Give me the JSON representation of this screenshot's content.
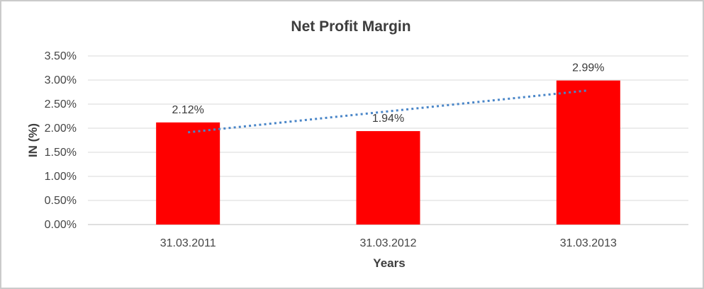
{
  "chart_data": {
    "type": "bar",
    "title": "Net Profit Margin",
    "categories": [
      "31.03.2011",
      "31.03.2012",
      "31.03.2013"
    ],
    "values": [
      2.12,
      1.94,
      2.99
    ],
    "value_labels": [
      "2.12%",
      "1.94%",
      "2.99%"
    ],
    "xlabel": "Years",
    "ylabel": "IN (%)",
    "ylim": [
      0,
      3.5
    ],
    "yticks": [
      {
        "value": 0.0,
        "label": "0.00%"
      },
      {
        "value": 0.5,
        "label": "0.50%"
      },
      {
        "value": 1.0,
        "label": "1.00%"
      },
      {
        "value": 1.5,
        "label": "1.50%"
      },
      {
        "value": 2.0,
        "label": "2.00%"
      },
      {
        "value": 2.5,
        "label": "2.50%"
      },
      {
        "value": 3.0,
        "label": "3.00%"
      },
      {
        "value": 3.5,
        "label": "3.50%"
      }
    ],
    "grid": true,
    "legend": "none",
    "trendline": {
      "type": "linear",
      "style": "dotted"
    },
    "colors": {
      "bar": "#ff0000",
      "trendline": "#4a86c8",
      "gridline": "#d9d9d9",
      "axis_line": "#bfbfbf"
    }
  }
}
